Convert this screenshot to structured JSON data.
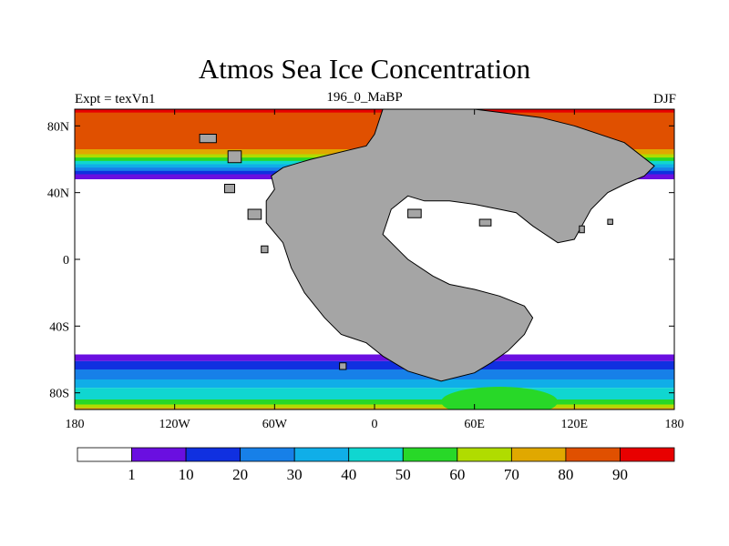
{
  "header": {
    "title": "Atmos Sea Ice Concentration",
    "left_label": "Expt = texVn1",
    "center_label": "196_0_MaBP",
    "right_label": "DJF"
  },
  "chart_data": {
    "type": "heatmap",
    "title": "Atmos Sea Ice Concentration",
    "lon_range": [
      -180,
      180
    ],
    "lat_range": [
      -90,
      90
    ],
    "x_ticks": [
      {
        "value": -180,
        "label": "180"
      },
      {
        "value": -120,
        "label": "120W"
      },
      {
        "value": -60,
        "label": "60W"
      },
      {
        "value": 0,
        "label": "0"
      },
      {
        "value": 60,
        "label": "60E"
      },
      {
        "value": 120,
        "label": "120E"
      },
      {
        "value": 180,
        "label": "180"
      }
    ],
    "y_ticks": [
      {
        "value": 80,
        "label": "80N"
      },
      {
        "value": 40,
        "label": "40N"
      },
      {
        "value": 0,
        "label": "0"
      },
      {
        "value": -40,
        "label": "40S"
      },
      {
        "value": -80,
        "label": "80S"
      }
    ],
    "colorbar": {
      "levels": [
        "1",
        "10",
        "20",
        "30",
        "40",
        "50",
        "60",
        "70",
        "80",
        "90"
      ],
      "colors": [
        "#ffffff",
        "#6a0fe0",
        "#1030e0",
        "#1780e8",
        "#10aee8",
        "#10d6d0",
        "#28d828",
        "#b0dc00",
        "#e0a800",
        "#e05000",
        "#e80000"
      ]
    },
    "land_color": "#a5a5a5",
    "ocean_color": "#ffffff",
    "north_ice_bands": [
      {
        "lat": 88,
        "value": 95,
        "color": "#e80000"
      },
      {
        "lat": 66,
        "value": 85,
        "color": "#e05000"
      },
      {
        "lat": 63,
        "value": 75,
        "color": "#e0a800"
      },
      {
        "lat": 61,
        "value": 65,
        "color": "#b0dc00"
      },
      {
        "lat": 59,
        "value": 55,
        "color": "#28d828"
      },
      {
        "lat": 57,
        "value": 45,
        "color": "#10d6d0"
      },
      {
        "lat": 55,
        "value": 35,
        "color": "#10aee8"
      },
      {
        "lat": 53,
        "value": 25,
        "color": "#1780e8"
      },
      {
        "lat": 51,
        "value": 15,
        "color": "#1030e0"
      },
      {
        "lat": 49,
        "value": 5,
        "color": "#6a0fe0"
      }
    ],
    "south_ice_bands": [
      {
        "lat": -57,
        "value": 5,
        "color": "#6a0fe0"
      },
      {
        "lat": -61,
        "value": 15,
        "color": "#1030e0"
      },
      {
        "lat": -66,
        "value": 25,
        "color": "#1780e8"
      },
      {
        "lat": -72,
        "value": 35,
        "color": "#10aee8"
      },
      {
        "lat": -77,
        "value": 45,
        "color": "#10d6d0"
      },
      {
        "lat": -84,
        "value": 55,
        "color": "#28d828"
      },
      {
        "lat": -87,
        "value": 65,
        "color": "#b0dc00"
      },
      {
        "lat": -89,
        "value": 75,
        "color": "#e0a800"
      }
    ],
    "south_high_patch": {
      "lon_range": [
        40,
        110
      ],
      "lat_range": [
        -90,
        -72
      ],
      "value": 55,
      "color": "#28d828"
    },
    "land_outline": [
      [
        -38,
        60
      ],
      [
        -5,
        68
      ],
      [
        0,
        75
      ],
      [
        5,
        90
      ],
      [
        60,
        90
      ],
      [
        100,
        85
      ],
      [
        120,
        80
      ],
      [
        150,
        70
      ],
      [
        168,
        56
      ],
      [
        162,
        50
      ],
      [
        150,
        45
      ],
      [
        140,
        40
      ],
      [
        130,
        30
      ],
      [
        120,
        12
      ],
      [
        110,
        10
      ],
      [
        95,
        20
      ],
      [
        85,
        28
      ],
      [
        75,
        30
      ],
      [
        60,
        33
      ],
      [
        45,
        35
      ],
      [
        30,
        35
      ],
      [
        20,
        38
      ],
      [
        10,
        30
      ],
      [
        5,
        15
      ],
      [
        15,
        5
      ],
      [
        20,
        0
      ],
      [
        35,
        -10
      ],
      [
        45,
        -15
      ],
      [
        60,
        -18
      ],
      [
        75,
        -22
      ],
      [
        90,
        -28
      ],
      [
        95,
        -35
      ],
      [
        90,
        -45
      ],
      [
        80,
        -55
      ],
      [
        70,
        -62
      ],
      [
        60,
        -68
      ],
      [
        40,
        -73
      ],
      [
        20,
        -67
      ],
      [
        5,
        -58
      ],
      [
        -5,
        -50
      ],
      [
        -20,
        -45
      ],
      [
        -30,
        -35
      ],
      [
        -42,
        -20
      ],
      [
        -50,
        -5
      ],
      [
        -55,
        10
      ],
      [
        -65,
        22
      ],
      [
        -65,
        35
      ],
      [
        -60,
        42
      ],
      [
        -62,
        50
      ],
      [
        -55,
        55
      ],
      [
        -45,
        58
      ]
    ],
    "land_islands": [
      [
        [
          -105,
          75
        ],
        [
          -95,
          75
        ],
        [
          -95,
          70
        ],
        [
          -105,
          70
        ]
      ],
      [
        [
          -88,
          65
        ],
        [
          -80,
          65
        ],
        [
          -80,
          58
        ],
        [
          -88,
          58
        ]
      ],
      [
        [
          -90,
          45
        ],
        [
          -84,
          45
        ],
        [
          -84,
          40
        ],
        [
          -90,
          40
        ]
      ],
      [
        [
          -76,
          30
        ],
        [
          -68,
          30
        ],
        [
          -68,
          24
        ],
        [
          -76,
          24
        ]
      ],
      [
        [
          -68,
          8
        ],
        [
          -64,
          8
        ],
        [
          -64,
          4
        ],
        [
          -68,
          4
        ]
      ],
      [
        [
          -21,
          -62
        ],
        [
          -17,
          -62
        ],
        [
          -17,
          -66
        ],
        [
          -21,
          -66
        ]
      ],
      [
        [
          20,
          30
        ],
        [
          28,
          30
        ],
        [
          28,
          25
        ],
        [
          20,
          25
        ]
      ],
      [
        [
          63,
          24
        ],
        [
          70,
          24
        ],
        [
          70,
          20
        ],
        [
          63,
          20
        ]
      ],
      [
        [
          123,
          20
        ],
        [
          126,
          20
        ],
        [
          126,
          16
        ],
        [
          123,
          16
        ]
      ],
      [
        [
          140,
          24
        ],
        [
          143,
          24
        ],
        [
          143,
          21
        ],
        [
          140,
          21
        ]
      ]
    ]
  },
  "ui": {
    "x_axis_label": "",
    "y_axis_label": ""
  }
}
